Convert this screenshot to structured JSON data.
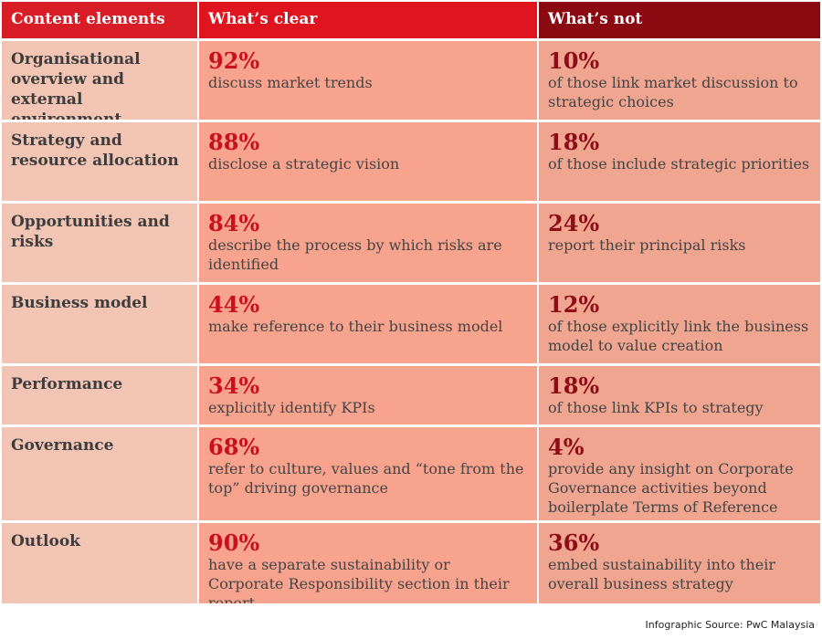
{
  "header": {
    "col1": "Content elements",
    "col2": "What’s clear",
    "col3": "What’s not"
  },
  "rows": [
    {
      "label": "Organisational overview and external environment",
      "clear_pct": "92%",
      "clear_text": "discuss market trends",
      "not_pct": "10%",
      "not_text": "of those link market discussion to strategic choices"
    },
    {
      "label": "Strategy and resource allocation",
      "clear_pct": "88%",
      "clear_text": "disclose a strategic vision",
      "not_pct": "18%",
      "not_text": "of those include strategic priorities"
    },
    {
      "label": "Opportunities and risks",
      "clear_pct": "84%",
      "clear_text": "describe the process by which risks are identified",
      "not_pct": "24%",
      "not_text": "report their principal risks"
    },
    {
      "label": "Business model",
      "clear_pct": "44%",
      "clear_text": "make reference to their business model",
      "not_pct": "12%",
      "not_text": "of those explicitly link the business model to value creation"
    },
    {
      "label": "Performance",
      "clear_pct": "34%",
      "clear_text": "explicitly identify KPIs",
      "not_pct": "18%",
      "not_text": "of those link KPIs to strategy"
    },
    {
      "label": "Governance",
      "clear_pct": "68%",
      "clear_text": "refer to culture, values and “tone from the top” driving governance",
      "not_pct": "4%",
      "not_text": "provide any insight on Corporate Governance activities beyond boilerplate Terms of Reference"
    },
    {
      "label": "Outlook",
      "clear_pct": "90%",
      "clear_text": "have a separate sustainability or Corporate Responsibility section in their report",
      "not_pct": "36%",
      "not_text": "embed sustainability into their overall business strategy"
    }
  ],
  "colors": {
    "header_red": "#e0141f",
    "header_dark": "#8b0a12",
    "col1_bg": "#f2c4b3",
    "col2_bg": "#f8a38e",
    "col3_bg": "#efa590"
  },
  "source": "Infographic Source: PwC Malaysia"
}
